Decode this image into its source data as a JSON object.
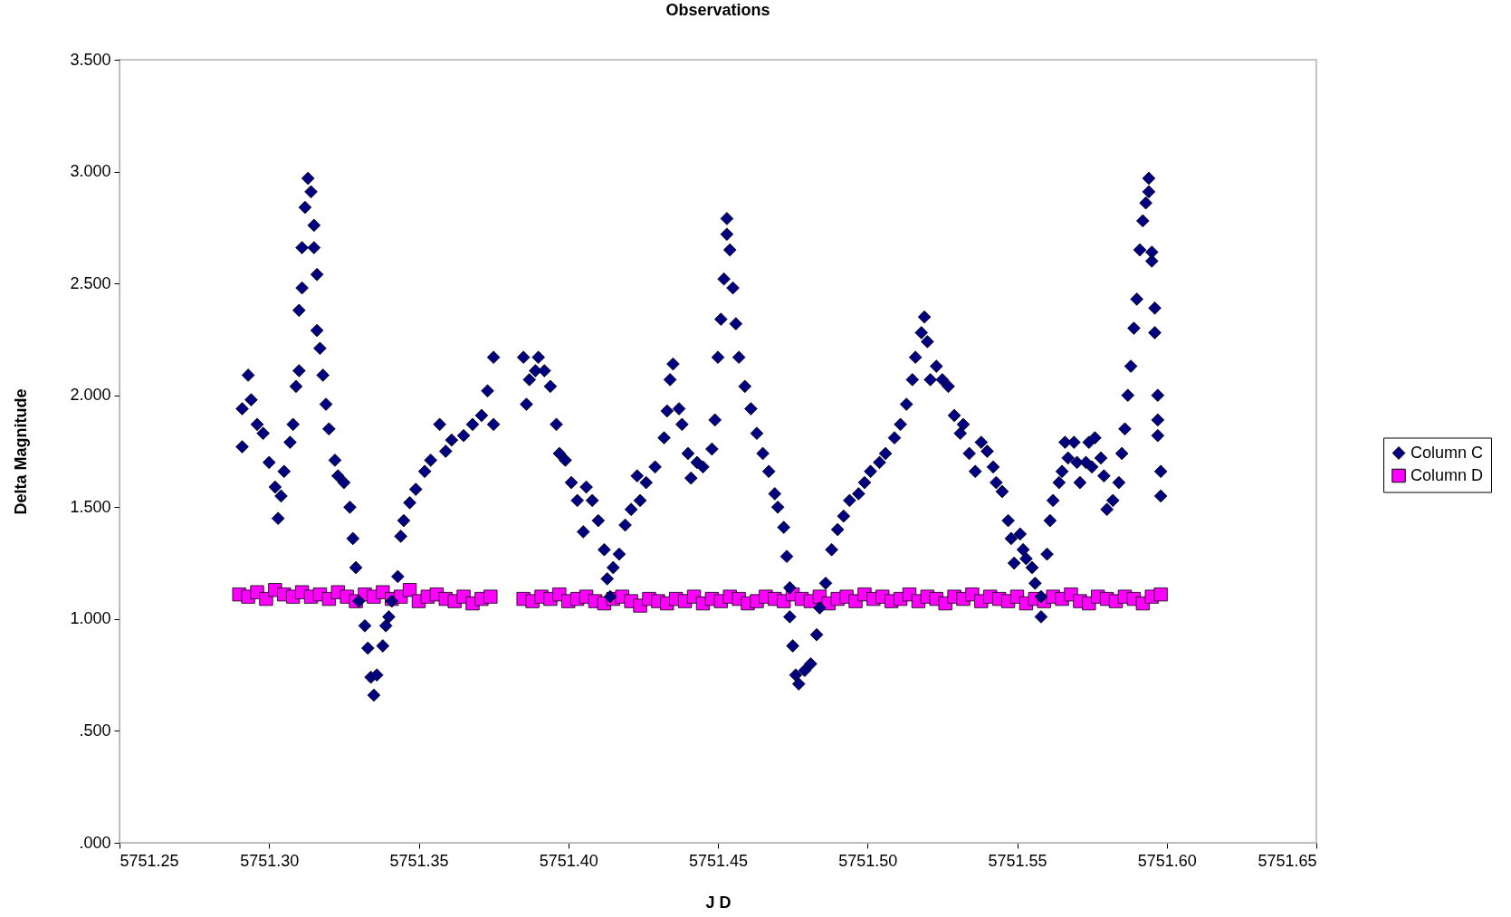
{
  "chart_data": {
    "type": "scatter",
    "title": "Observations",
    "xlabel": "J D",
    "ylabel": "Delta Magnitude",
    "xlim": [
      5751.25,
      5751.65
    ],
    "xticks": [
      5751.25,
      {
        "value": 5751.3,
        "label": "5751.30"
      },
      5751.35,
      {
        "value": 5751.4,
        "label": "5751.40"
      },
      5751.45,
      {
        "value": 5751.5,
        "label": "5751.50"
      },
      5751.55,
      {
        "value": 5751.6,
        "label": "5751.60"
      },
      5751.65
    ],
    "ylim": [
      0,
      3.5
    ],
    "yticks": [
      {
        "value": 0,
        "label": ".000"
      },
      {
        "value": 0.5,
        "label": ".500"
      },
      {
        "value": 1,
        "label": "1.000"
      },
      {
        "value": 1.5,
        "label": "1.500"
      },
      {
        "value": 2,
        "label": "2.000"
      },
      {
        "value": 2.5,
        "label": "2.500"
      },
      {
        "value": 3,
        "label": "3.000"
      },
      {
        "value": 3.5,
        "label": "3.500"
      }
    ],
    "grid": false,
    "legend": "right",
    "series": [
      {
        "name": "Column C",
        "color": "#000080",
        "marker": "diamond",
        "x": [
          5751.291,
          5751.291,
          5751.293,
          5751.294,
          5751.296,
          5751.298,
          5751.3,
          5751.302,
          5751.303,
          5751.304,
          5751.305,
          5751.307,
          5751.308,
          5751.309,
          5751.31,
          5751.31,
          5751.311,
          5751.311,
          5751.312,
          5751.313,
          5751.314,
          5751.315,
          5751.315,
          5751.316,
          5751.316,
          5751.317,
          5751.318,
          5751.319,
          5751.32,
          5751.322,
          5751.323,
          5751.325,
          5751.327,
          5751.328,
          5751.329,
          5751.33,
          5751.332,
          5751.333,
          5751.334,
          5751.335,
          5751.336,
          5751.338,
          5751.339,
          5751.34,
          5751.341,
          5751.343,
          5751.344,
          5751.345,
          5751.347,
          5751.349,
          5751.352,
          5751.354,
          5751.357,
          5751.359,
          5751.361,
          5751.365,
          5751.368,
          5751.371,
          5751.373,
          5751.375,
          5751.375,
          5751.385,
          5751.386,
          5751.387,
          5751.389,
          5751.39,
          5751.392,
          5751.394,
          5751.396,
          5751.397,
          5751.399,
          5751.401,
          5751.403,
          5751.405,
          5751.406,
          5751.408,
          5751.41,
          5751.412,
          5751.413,
          5751.414,
          5751.415,
          5751.417,
          5751.419,
          5751.421,
          5751.423,
          5751.424,
          5751.426,
          5751.429,
          5751.432,
          5751.433,
          5751.434,
          5751.435,
          5751.437,
          5751.438,
          5751.44,
          5751.441,
          5751.443,
          5751.445,
          5751.448,
          5751.449,
          5751.45,
          5751.451,
          5751.452,
          5751.453,
          5751.453,
          5751.454,
          5751.455,
          5751.456,
          5751.457,
          5751.459,
          5751.461,
          5751.463,
          5751.465,
          5751.467,
          5751.469,
          5751.47,
          5751.472,
          5751.473,
          5751.474,
          5751.474,
          5751.475,
          5751.476,
          5751.477,
          5751.479,
          5751.481,
          5751.483,
          5751.484,
          5751.486,
          5751.488,
          5751.49,
          5751.492,
          5751.494,
          5751.497,
          5751.499,
          5751.501,
          5751.504,
          5751.506,
          5751.509,
          5751.511,
          5751.513,
          5751.515,
          5751.516,
          5751.518,
          5751.519,
          5751.52,
          5751.521,
          5751.523,
          5751.525,
          5751.527,
          5751.529,
          5751.531,
          5751.532,
          5751.534,
          5751.536,
          5751.538,
          5751.54,
          5751.542,
          5751.543,
          5751.545,
          5751.547,
          5751.548,
          5751.549,
          5751.551,
          5751.552,
          5751.553,
          5751.555,
          5751.556,
          5751.558,
          5751.558,
          5751.56,
          5751.561,
          5751.562,
          5751.564,
          5751.565,
          5751.566,
          5751.567,
          5751.569,
          5751.57,
          5751.571,
          5751.573,
          5751.574,
          5751.575,
          5751.576,
          5751.578,
          5751.579,
          5751.58,
          5751.582,
          5751.584,
          5751.585,
          5751.586,
          5751.587,
          5751.588,
          5751.589,
          5751.59,
          5751.591,
          5751.592,
          5751.593,
          5751.594,
          5751.594,
          5751.595,
          5751.595,
          5751.596,
          5751.596,
          5751.597,
          5751.597,
          5751.597,
          5751.598,
          5751.598
        ],
        "values": [
          1.77,
          1.94,
          2.09,
          1.98,
          1.87,
          1.83,
          1.7,
          1.59,
          1.45,
          1.55,
          1.66,
          1.79,
          1.87,
          2.04,
          2.11,
          2.38,
          2.48,
          2.66,
          2.84,
          2.97,
          2.91,
          2.76,
          2.66,
          2.54,
          2.29,
          2.21,
          2.09,
          1.96,
          1.85,
          1.71,
          1.64,
          1.61,
          1.5,
          1.36,
          1.23,
          1.08,
          0.97,
          0.87,
          0.74,
          0.66,
          0.75,
          0.88,
          0.97,
          1.01,
          1.08,
          1.19,
          1.37,
          1.44,
          1.52,
          1.58,
          1.66,
          1.71,
          1.87,
          1.75,
          1.8,
          1.82,
          1.87,
          1.91,
          2.02,
          2.17,
          1.87,
          2.17,
          1.96,
          2.07,
          2.11,
          2.17,
          2.11,
          2.04,
          1.87,
          1.74,
          1.71,
          1.61,
          1.53,
          1.39,
          1.59,
          1.53,
          1.44,
          1.31,
          1.18,
          1.1,
          1.23,
          1.29,
          1.42,
          1.49,
          1.64,
          1.53,
          1.61,
          1.68,
          1.81,
          1.93,
          2.07,
          2.14,
          1.94,
          1.87,
          1.74,
          1.63,
          1.7,
          1.68,
          1.76,
          1.89,
          2.17,
          2.34,
          2.52,
          2.72,
          2.79,
          2.65,
          2.48,
          2.32,
          2.17,
          2.04,
          1.94,
          1.83,
          1.74,
          1.66,
          1.56,
          1.5,
          1.41,
          1.28,
          1.14,
          1.01,
          0.88,
          0.75,
          0.71,
          0.77,
          0.8,
          0.93,
          1.05,
          1.16,
          1.31,
          1.4,
          1.46,
          1.53,
          1.56,
          1.61,
          1.66,
          1.7,
          1.74,
          1.81,
          1.87,
          1.96,
          2.07,
          2.17,
          2.28,
          2.35,
          2.24,
          2.07,
          2.13,
          2.07,
          2.04,
          1.91,
          1.83,
          1.87,
          1.74,
          1.66,
          1.79,
          1.75,
          1.68,
          1.61,
          1.57,
          1.44,
          1.36,
          1.25,
          1.38,
          1.31,
          1.27,
          1.23,
          1.16,
          1.1,
          1.01,
          1.29,
          1.44,
          1.53,
          1.61,
          1.66,
          1.79,
          1.72,
          1.79,
          1.7,
          1.61,
          1.7,
          1.79,
          1.68,
          1.81,
          1.72,
          1.64,
          1.49,
          1.53,
          1.61,
          1.74,
          1.85,
          2.0,
          2.13,
          2.3,
          2.43,
          2.65,
          2.78,
          2.86,
          2.97,
          2.91,
          2.64,
          2.6,
          2.39,
          2.28,
          2.0,
          1.89,
          1.82,
          1.66,
          1.55
        ]
      },
      {
        "name": "Column D",
        "color": "#ff00ff",
        "marker": "square",
        "x": [
          5751.29,
          5751.293,
          5751.296,
          5751.299,
          5751.302,
          5751.305,
          5751.308,
          5751.311,
          5751.314,
          5751.317,
          5751.32,
          5751.323,
          5751.326,
          5751.329,
          5751.332,
          5751.335,
          5751.338,
          5751.341,
          5751.344,
          5751.347,
          5751.35,
          5751.353,
          5751.356,
          5751.359,
          5751.362,
          5751.365,
          5751.368,
          5751.371,
          5751.374,
          5751.385,
          5751.388,
          5751.391,
          5751.394,
          5751.397,
          5751.4,
          5751.403,
          5751.406,
          5751.409,
          5751.412,
          5751.415,
          5751.418,
          5751.421,
          5751.424,
          5751.427,
          5751.43,
          5751.433,
          5751.436,
          5751.439,
          5751.442,
          5751.445,
          5751.448,
          5751.451,
          5751.454,
          5751.457,
          5751.46,
          5751.463,
          5751.466,
          5751.469,
          5751.472,
          5751.475,
          5751.478,
          5751.481,
          5751.484,
          5751.487,
          5751.49,
          5751.493,
          5751.496,
          5751.499,
          5751.502,
          5751.505,
          5751.508,
          5751.511,
          5751.514,
          5751.517,
          5751.52,
          5751.523,
          5751.526,
          5751.529,
          5751.532,
          5751.535,
          5751.538,
          5751.541,
          5751.544,
          5751.547,
          5751.55,
          5751.553,
          5751.556,
          5751.559,
          5751.562,
          5751.565,
          5751.568,
          5751.571,
          5751.574,
          5751.577,
          5751.58,
          5751.583,
          5751.586,
          5751.589,
          5751.592,
          5751.595,
          5751.598
        ],
        "values": [
          1.11,
          1.1,
          1.12,
          1.09,
          1.13,
          1.11,
          1.1,
          1.12,
          1.1,
          1.11,
          1.09,
          1.12,
          1.1,
          1.08,
          1.11,
          1.1,
          1.12,
          1.09,
          1.1,
          1.13,
          1.08,
          1.1,
          1.11,
          1.09,
          1.08,
          1.1,
          1.07,
          1.09,
          1.1,
          1.09,
          1.08,
          1.1,
          1.09,
          1.11,
          1.08,
          1.09,
          1.1,
          1.08,
          1.07,
          1.09,
          1.1,
          1.08,
          1.06,
          1.09,
          1.08,
          1.07,
          1.09,
          1.08,
          1.1,
          1.07,
          1.09,
          1.08,
          1.1,
          1.09,
          1.07,
          1.08,
          1.1,
          1.09,
          1.08,
          1.11,
          1.09,
          1.08,
          1.1,
          1.07,
          1.09,
          1.1,
          1.08,
          1.11,
          1.09,
          1.1,
          1.08,
          1.09,
          1.11,
          1.08,
          1.1,
          1.09,
          1.07,
          1.1,
          1.09,
          1.11,
          1.08,
          1.1,
          1.09,
          1.08,
          1.1,
          1.07,
          1.09,
          1.08,
          1.1,
          1.09,
          1.11,
          1.08,
          1.07,
          1.1,
          1.09,
          1.08,
          1.1,
          1.09,
          1.07,
          1.1,
          1.11
        ]
      }
    ]
  }
}
